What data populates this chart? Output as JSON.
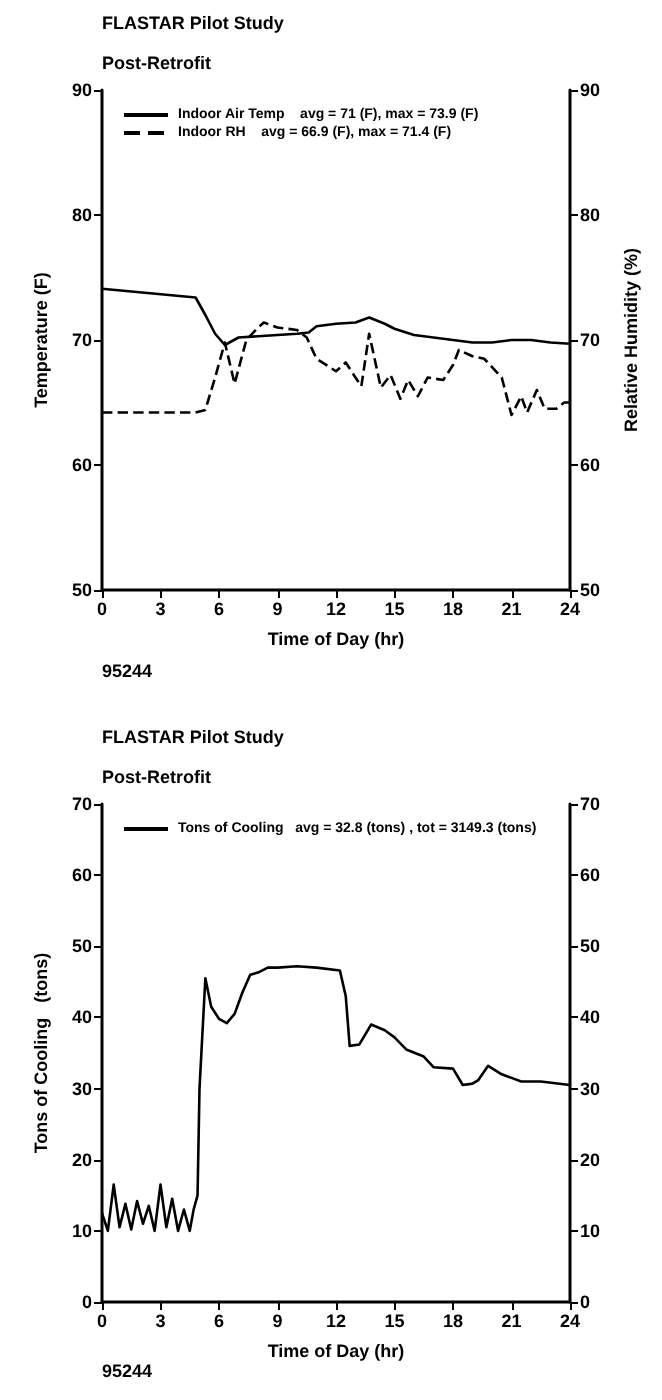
{
  "chart_data": [
    {
      "type": "line",
      "title": "FLASTAR Pilot Study",
      "subtitle": "Post-Retrofit",
      "xlabel": "Time of Day (hr)",
      "ylabel": "Temperature (F)",
      "y2label": "Relative Humidity (%)",
      "annotations": [
        "95244"
      ],
      "xlim": [
        0,
        24
      ],
      "xticks": [
        0,
        3,
        6,
        9,
        12,
        15,
        18,
        21,
        24
      ],
      "ylim": [
        50,
        90
      ],
      "yticks": [
        50,
        60,
        70,
        80,
        90
      ],
      "y2lim": [
        50,
        90
      ],
      "y2ticks": [
        50,
        60,
        70,
        80,
        90
      ],
      "legend": "top left",
      "grid": false,
      "marker": "none",
      "series": [
        {
          "name": "Indoor Air Temp    avg = 71 (F), max = 73.9 (F)",
          "color": "#000000",
          "line_style": "solid",
          "x": [
            0,
            4.8,
            5.3,
            5.8,
            6.3,
            7,
            8,
            9,
            10,
            10.6,
            11,
            12,
            13,
            13.7,
            14.5,
            15,
            16,
            17,
            18,
            19,
            20,
            21,
            22,
            23,
            24
          ],
          "values": [
            74.1,
            73.4,
            72,
            70.5,
            69.6,
            70.2,
            70.3,
            70.4,
            70.5,
            70.6,
            71.1,
            71.3,
            71.4,
            71.8,
            71.3,
            70.9,
            70.4,
            70.2,
            70,
            69.8,
            69.8,
            70,
            70,
            69.8,
            69.7
          ]
        },
        {
          "name": "Indoor RH    avg = 66.9 (F), max = 71.4 (F)",
          "color": "#000000",
          "line_style": "dashed",
          "x": [
            0,
            4.8,
            5.3,
            5.8,
            6.3,
            6.8,
            7.4,
            8,
            8.3,
            9,
            10,
            10.5,
            11,
            12,
            12.5,
            13,
            13.3,
            13.7,
            14.3,
            14.8,
            15.3,
            15.7,
            16.2,
            16.7,
            17.5,
            18,
            18.3,
            19,
            19.6,
            20.5,
            21,
            21.5,
            21.8,
            22.3,
            22.7,
            23.3,
            23.7,
            24
          ],
          "values": [
            64.2,
            64.2,
            64.4,
            67,
            69.8,
            66.5,
            70,
            71,
            71.4,
            71,
            70.8,
            70.2,
            68.5,
            67.5,
            68.2,
            67,
            66.3,
            70.5,
            66.2,
            67.2,
            65.3,
            66.8,
            65.5,
            67,
            66.8,
            68,
            69.2,
            68.7,
            68.5,
            67,
            64,
            65.5,
            64.2,
            66,
            64.5,
            64.5,
            65,
            65
          ]
        }
      ]
    },
    {
      "type": "line",
      "title": "FLASTAR Pilot Study",
      "subtitle": "Post-Retrofit",
      "xlabel": "Time of Day (hr)",
      "ylabel": "Tons of Cooling   (tons)",
      "annotations": [
        "95244"
      ],
      "xlim": [
        0,
        24
      ],
      "xticks": [
        0,
        3,
        6,
        9,
        12,
        15,
        18,
        21,
        24
      ],
      "ylim": [
        0,
        70
      ],
      "yticks": [
        0,
        10,
        20,
        30,
        40,
        50,
        60,
        70
      ],
      "y2lim": [
        0,
        70
      ],
      "y2ticks": [
        0,
        10,
        20,
        30,
        40,
        50,
        60,
        70
      ],
      "legend": "top left",
      "grid": false,
      "marker": "none",
      "series": [
        {
          "name": "Tons of Cooling   avg = 32.8 (tons) , tot = 3149.3 (tons)",
          "color": "#000000",
          "line_style": "solid",
          "x": [
            0,
            0.3,
            0.6,
            0.9,
            1.2,
            1.5,
            1.8,
            2.1,
            2.4,
            2.7,
            3,
            3.3,
            3.6,
            3.9,
            4.2,
            4.5,
            4.7,
            4.9,
            5,
            5.3,
            5.6,
            6,
            6.4,
            6.8,
            7.2,
            7.6,
            8,
            8.5,
            9,
            10,
            11,
            12.2,
            12.5,
            12.7,
            13.2,
            13.8,
            14.5,
            15,
            15.6,
            16.5,
            17,
            18,
            18.5,
            19,
            19.3,
            19.8,
            20.5,
            21,
            21.5,
            22.5,
            24
          ],
          "values": [
            12.5,
            10,
            16.5,
            10.5,
            13.8,
            10.2,
            14.2,
            11,
            13.5,
            10,
            16.5,
            10.5,
            14.5,
            10,
            13,
            10,
            13,
            15,
            30,
            45.5,
            41.5,
            39.8,
            39.2,
            40.5,
            43.5,
            46,
            46.3,
            47,
            47,
            47.2,
            47,
            46.6,
            43,
            36,
            36.2,
            39,
            38.2,
            37.2,
            35.5,
            34.5,
            33,
            32.8,
            30.5,
            30.7,
            31.2,
            33.2,
            32,
            31.5,
            31,
            31,
            30.5
          ]
        }
      ]
    }
  ]
}
